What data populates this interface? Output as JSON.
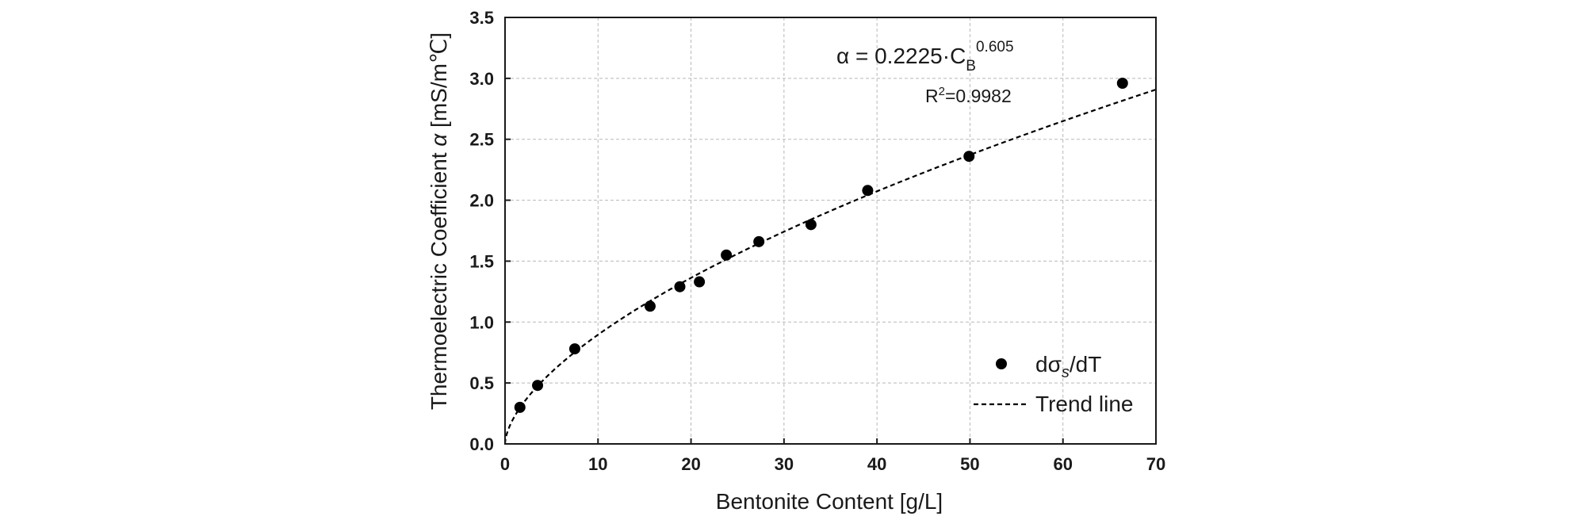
{
  "chart_data": {
    "type": "scatter",
    "xlabel": "Bentonite Content [g/L]",
    "ylabel_prefix": "Thermoelectric Coefficient ",
    "ylabel_symbol": "α",
    "ylabel_unit": " [mS/m℃]",
    "xlim": [
      0,
      70
    ],
    "ylim": [
      0,
      3.5
    ],
    "x_ticks": [
      "0",
      "10",
      "20",
      "30",
      "40",
      "50",
      "60",
      "70"
    ],
    "y_ticks": [
      "0.0",
      "0.5",
      "1.0",
      "1.5",
      "2.0",
      "2.5",
      "3.0",
      "3.5"
    ],
    "grid": true,
    "legend_position": "bottom-right",
    "series": [
      {
        "name": "dσs/dT",
        "kind": "points",
        "x": [
          1.6,
          3.5,
          7.5,
          15.6,
          18.8,
          20.9,
          23.8,
          27.3,
          32.9,
          39.0,
          49.9,
          66.4
        ],
        "y": [
          0.3,
          0.48,
          0.78,
          1.13,
          1.29,
          1.33,
          1.55,
          1.66,
          1.8,
          2.08,
          2.36,
          2.96
        ]
      },
      {
        "name": "Trend line",
        "kind": "fit",
        "coefficient": 0.2225,
        "exponent": 0.605
      }
    ],
    "legend": {
      "points_label_main": "dσ",
      "points_label_sub": "s",
      "points_label_tail": "/dT",
      "trend_label": "Trend line"
    },
    "annotation": {
      "eq_left": "α = 0.2225·C",
      "eq_sub": "B",
      "eq_sup": "0.605",
      "r2_base": "R",
      "r2_sup": "2",
      "r2_value": "=0.9982"
    }
  }
}
